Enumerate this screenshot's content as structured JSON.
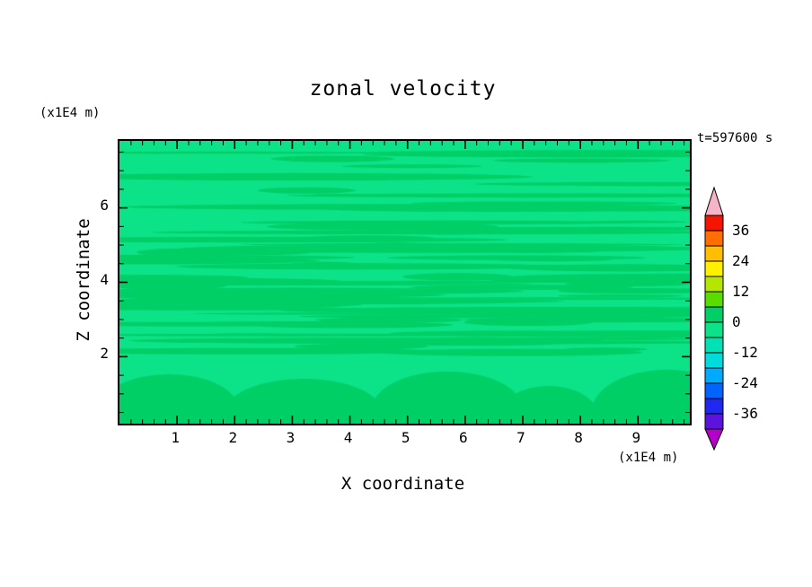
{
  "chart_data": {
    "type": "heatmap",
    "subtype": "filled-contour",
    "title": "zonal velocity",
    "timestamp": "t=597600 s",
    "xlabel": "X coordinate",
    "ylabel": "Z coordinate",
    "x_unit": "(x1E4 m)",
    "y_unit": "(x1E4 m)",
    "xlim": [
      0,
      9.9
    ],
    "ylim": [
      0.2,
      7.8
    ],
    "x_ticks": [
      1,
      2,
      3,
      4,
      5,
      6,
      7,
      8,
      9
    ],
    "y_ticks": [
      2,
      4,
      6
    ],
    "contour_interval": 6,
    "field": {
      "description": "Zonal velocity values near 0 m/s everywhere: horizontal streaky bands in the upper region and broad blobs below z=2, alternating between the -6..0 and 0..6 contour fill levels",
      "base_color": "#0CE287",
      "band_color": "#00CF66"
    },
    "colorbar": {
      "tick_labels": [
        36,
        24,
        12,
        0,
        -12,
        -24,
        -36
      ],
      "range": [
        -42,
        42
      ],
      "segment_colors_bottom_to_top": [
        "#5A14DC",
        "#1E28F0",
        "#0064FF",
        "#00AAFF",
        "#00DCDC",
        "#00E2B4",
        "#0CE287",
        "#00CF66",
        "#5ADC00",
        "#B4E600",
        "#FFF000",
        "#FFBE00",
        "#FF6E00",
        "#F51400"
      ],
      "under_arrow_color": "#B400C8",
      "over_arrow_color": "#F5B4C8"
    }
  }
}
